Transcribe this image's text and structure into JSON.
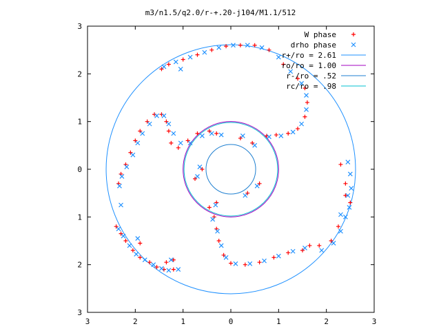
{
  "chart_data": {
    "type": "scatter",
    "title": "m3/n1.5/q2.0/r-+.20-j104/M1.1/512",
    "xlabel": "",
    "ylabel": "",
    "xlim": [
      -3,
      3
    ],
    "ylim": [
      -3,
      3
    ],
    "x_tick_values": [
      -3,
      -2,
      -1,
      0,
      1,
      2,
      3
    ],
    "x_tick_labels": [
      "3",
      "2",
      "1",
      "0",
      "1",
      "2",
      "3"
    ],
    "y_tick_values": [
      3,
      2,
      1,
      0,
      -1,
      -2,
      -3
    ],
    "y_tick_labels": [
      "3",
      "2",
      "1",
      "0",
      "1",
      "2",
      "3"
    ],
    "grid": false,
    "legend_position": "top-right",
    "legend": [
      {
        "label": "W phase",
        "kind": "marker",
        "symbol": "plus",
        "color": "#ff0000"
      },
      {
        "label": "drho phase",
        "kind": "marker",
        "symbol": "cross",
        "color": "#1e90ff"
      },
      {
        "label": "r+/ro = 2.61",
        "kind": "line",
        "color": "#1e90ff"
      },
      {
        "label": "ro/ro = 1.00",
        "kind": "line",
        "color": "#a000c0"
      },
      {
        "label": "r-/ro = .52",
        "kind": "line",
        "color": "#1e7fd0"
      },
      {
        "label": "rc/ro = .98",
        "kind": "line",
        "color": "#00c0d0"
      }
    ],
    "circles": [
      {
        "r": 2.61,
        "color": "#1e90ff"
      },
      {
        "r": 1.0,
        "color": "#a000c0"
      },
      {
        "r": 0.52,
        "color": "#1e7fd0"
      },
      {
        "r": 0.98,
        "color": "#00c0d0"
      }
    ],
    "series": [
      {
        "name": "W phase",
        "color": "#ff0000",
        "points": [
          [
            -2.35,
            -0.3
          ],
          [
            -2.3,
            -0.1
          ],
          [
            -2.2,
            0.1
          ],
          [
            -2.1,
            0.35
          ],
          [
            -2.0,
            0.6
          ],
          [
            -1.9,
            0.8
          ],
          [
            -1.75,
            1.0
          ],
          [
            -1.6,
            1.15
          ],
          [
            -1.45,
            1.15
          ],
          [
            -1.35,
            1.0
          ],
          [
            -1.3,
            0.8
          ],
          [
            -1.25,
            0.55
          ],
          [
            -1.1,
            0.45
          ],
          [
            -0.9,
            0.6
          ],
          [
            -0.7,
            0.75
          ],
          [
            -0.45,
            0.8
          ],
          [
            -0.3,
            0.75
          ],
          [
            -0.3,
            -0.7
          ],
          [
            -0.45,
            -0.8
          ],
          [
            -0.35,
            -1.0
          ],
          [
            -0.3,
            -1.25
          ],
          [
            -0.25,
            -1.5
          ],
          [
            -0.15,
            -1.8
          ],
          [
            0.0,
            -1.97
          ],
          [
            0.3,
            -2.0
          ],
          [
            0.6,
            -1.95
          ],
          [
            0.9,
            -1.85
          ],
          [
            1.2,
            -1.75
          ],
          [
            1.5,
            -1.7
          ],
          [
            1.65,
            -1.6
          ],
          [
            0.75,
            0.7
          ],
          [
            0.95,
            0.72
          ],
          [
            1.2,
            0.75
          ],
          [
            1.4,
            0.85
          ],
          [
            1.55,
            1.1
          ],
          [
            1.6,
            1.4
          ],
          [
            1.55,
            1.7
          ],
          [
            1.4,
            1.9
          ],
          [
            1.1,
            2.2
          ],
          [
            0.8,
            2.5
          ],
          [
            0.5,
            2.6
          ],
          [
            0.2,
            2.6
          ],
          [
            -0.1,
            2.58
          ],
          [
            -0.4,
            2.5
          ],
          [
            -0.7,
            2.4
          ],
          [
            -1.0,
            2.3
          ],
          [
            -1.3,
            2.2
          ],
          [
            -1.45,
            2.1
          ],
          [
            -2.4,
            -1.2
          ],
          [
            -2.3,
            -1.35
          ],
          [
            -2.2,
            -1.5
          ],
          [
            -2.05,
            -1.7
          ],
          [
            -1.9,
            -1.85
          ],
          [
            -1.7,
            -1.95
          ],
          [
            -1.55,
            -2.05
          ],
          [
            -1.4,
            -2.1
          ],
          [
            -1.2,
            -2.1
          ],
          [
            2.3,
            0.1
          ],
          [
            2.4,
            -0.3
          ],
          [
            2.5,
            -0.7
          ],
          [
            2.25,
            -1.2
          ],
          [
            2.1,
            -1.5
          ],
          [
            1.85,
            -1.6
          ],
          [
            0.2,
            0.65
          ],
          [
            0.45,
            0.55
          ],
          [
            0.35,
            -0.5
          ],
          [
            0.6,
            -0.3
          ],
          [
            -0.6,
            0.0
          ],
          [
            -0.75,
            -0.2
          ],
          [
            -1.9,
            -1.55
          ],
          [
            -1.2,
            -1.9
          ],
          [
            -1.35,
            -1.95
          ],
          [
            2.4,
            -0.55
          ]
        ]
      },
      {
        "name": "drho phase",
        "color": "#1e90ff",
        "points": [
          [
            -2.33,
            -0.35
          ],
          [
            -2.28,
            -0.15
          ],
          [
            -2.18,
            0.05
          ],
          [
            -2.05,
            0.3
          ],
          [
            -1.95,
            0.55
          ],
          [
            -1.85,
            0.75
          ],
          [
            -1.7,
            0.95
          ],
          [
            -1.55,
            1.12
          ],
          [
            -1.4,
            1.12
          ],
          [
            -1.3,
            0.95
          ],
          [
            -1.2,
            0.75
          ],
          [
            -1.05,
            0.55
          ],
          [
            -0.85,
            0.55
          ],
          [
            -0.6,
            0.7
          ],
          [
            -0.4,
            0.75
          ],
          [
            -0.2,
            0.72
          ],
          [
            -0.32,
            -0.75
          ],
          [
            -0.38,
            -1.05
          ],
          [
            -0.28,
            -1.3
          ],
          [
            -0.2,
            -1.6
          ],
          [
            -0.1,
            -1.85
          ],
          [
            0.1,
            -1.98
          ],
          [
            0.4,
            -1.98
          ],
          [
            0.7,
            -1.92
          ],
          [
            1.0,
            -1.82
          ],
          [
            1.3,
            -1.72
          ],
          [
            1.55,
            -1.65
          ],
          [
            0.8,
            0.68
          ],
          [
            1.05,
            0.7
          ],
          [
            1.3,
            0.78
          ],
          [
            1.48,
            0.95
          ],
          [
            1.58,
            1.25
          ],
          [
            1.58,
            1.55
          ],
          [
            1.48,
            1.8
          ],
          [
            1.25,
            2.05
          ],
          [
            1.0,
            2.35
          ],
          [
            0.65,
            2.55
          ],
          [
            0.35,
            2.6
          ],
          [
            0.05,
            2.6
          ],
          [
            -0.25,
            2.55
          ],
          [
            -0.55,
            2.45
          ],
          [
            -0.85,
            2.35
          ],
          [
            -1.15,
            2.25
          ],
          [
            -1.4,
            2.15
          ],
          [
            -2.35,
            -1.25
          ],
          [
            -2.25,
            -1.4
          ],
          [
            -2.12,
            -1.6
          ],
          [
            -1.98,
            -1.78
          ],
          [
            -1.8,
            -1.9
          ],
          [
            -1.62,
            -2.0
          ],
          [
            -1.45,
            -2.08
          ],
          [
            -1.3,
            -2.12
          ],
          [
            -1.1,
            -2.1
          ],
          [
            2.45,
            0.15
          ],
          [
            2.5,
            -0.1
          ],
          [
            2.52,
            -0.4
          ],
          [
            2.48,
            -0.8
          ],
          [
            2.4,
            -1.0
          ],
          [
            2.3,
            -1.3
          ],
          [
            2.15,
            -1.55
          ],
          [
            1.9,
            -1.7
          ],
          [
            2.3,
            -0.95
          ],
          [
            2.45,
            -0.55
          ],
          [
            0.25,
            0.7
          ],
          [
            0.5,
            0.5
          ],
          [
            0.3,
            -0.55
          ],
          [
            0.55,
            -0.35
          ],
          [
            -0.65,
            0.05
          ],
          [
            -0.7,
            -0.15
          ],
          [
            -1.95,
            -1.45
          ],
          [
            -2.3,
            -0.75
          ],
          [
            -1.25,
            -1.9
          ],
          [
            -1.05,
            2.1
          ]
        ]
      }
    ]
  }
}
